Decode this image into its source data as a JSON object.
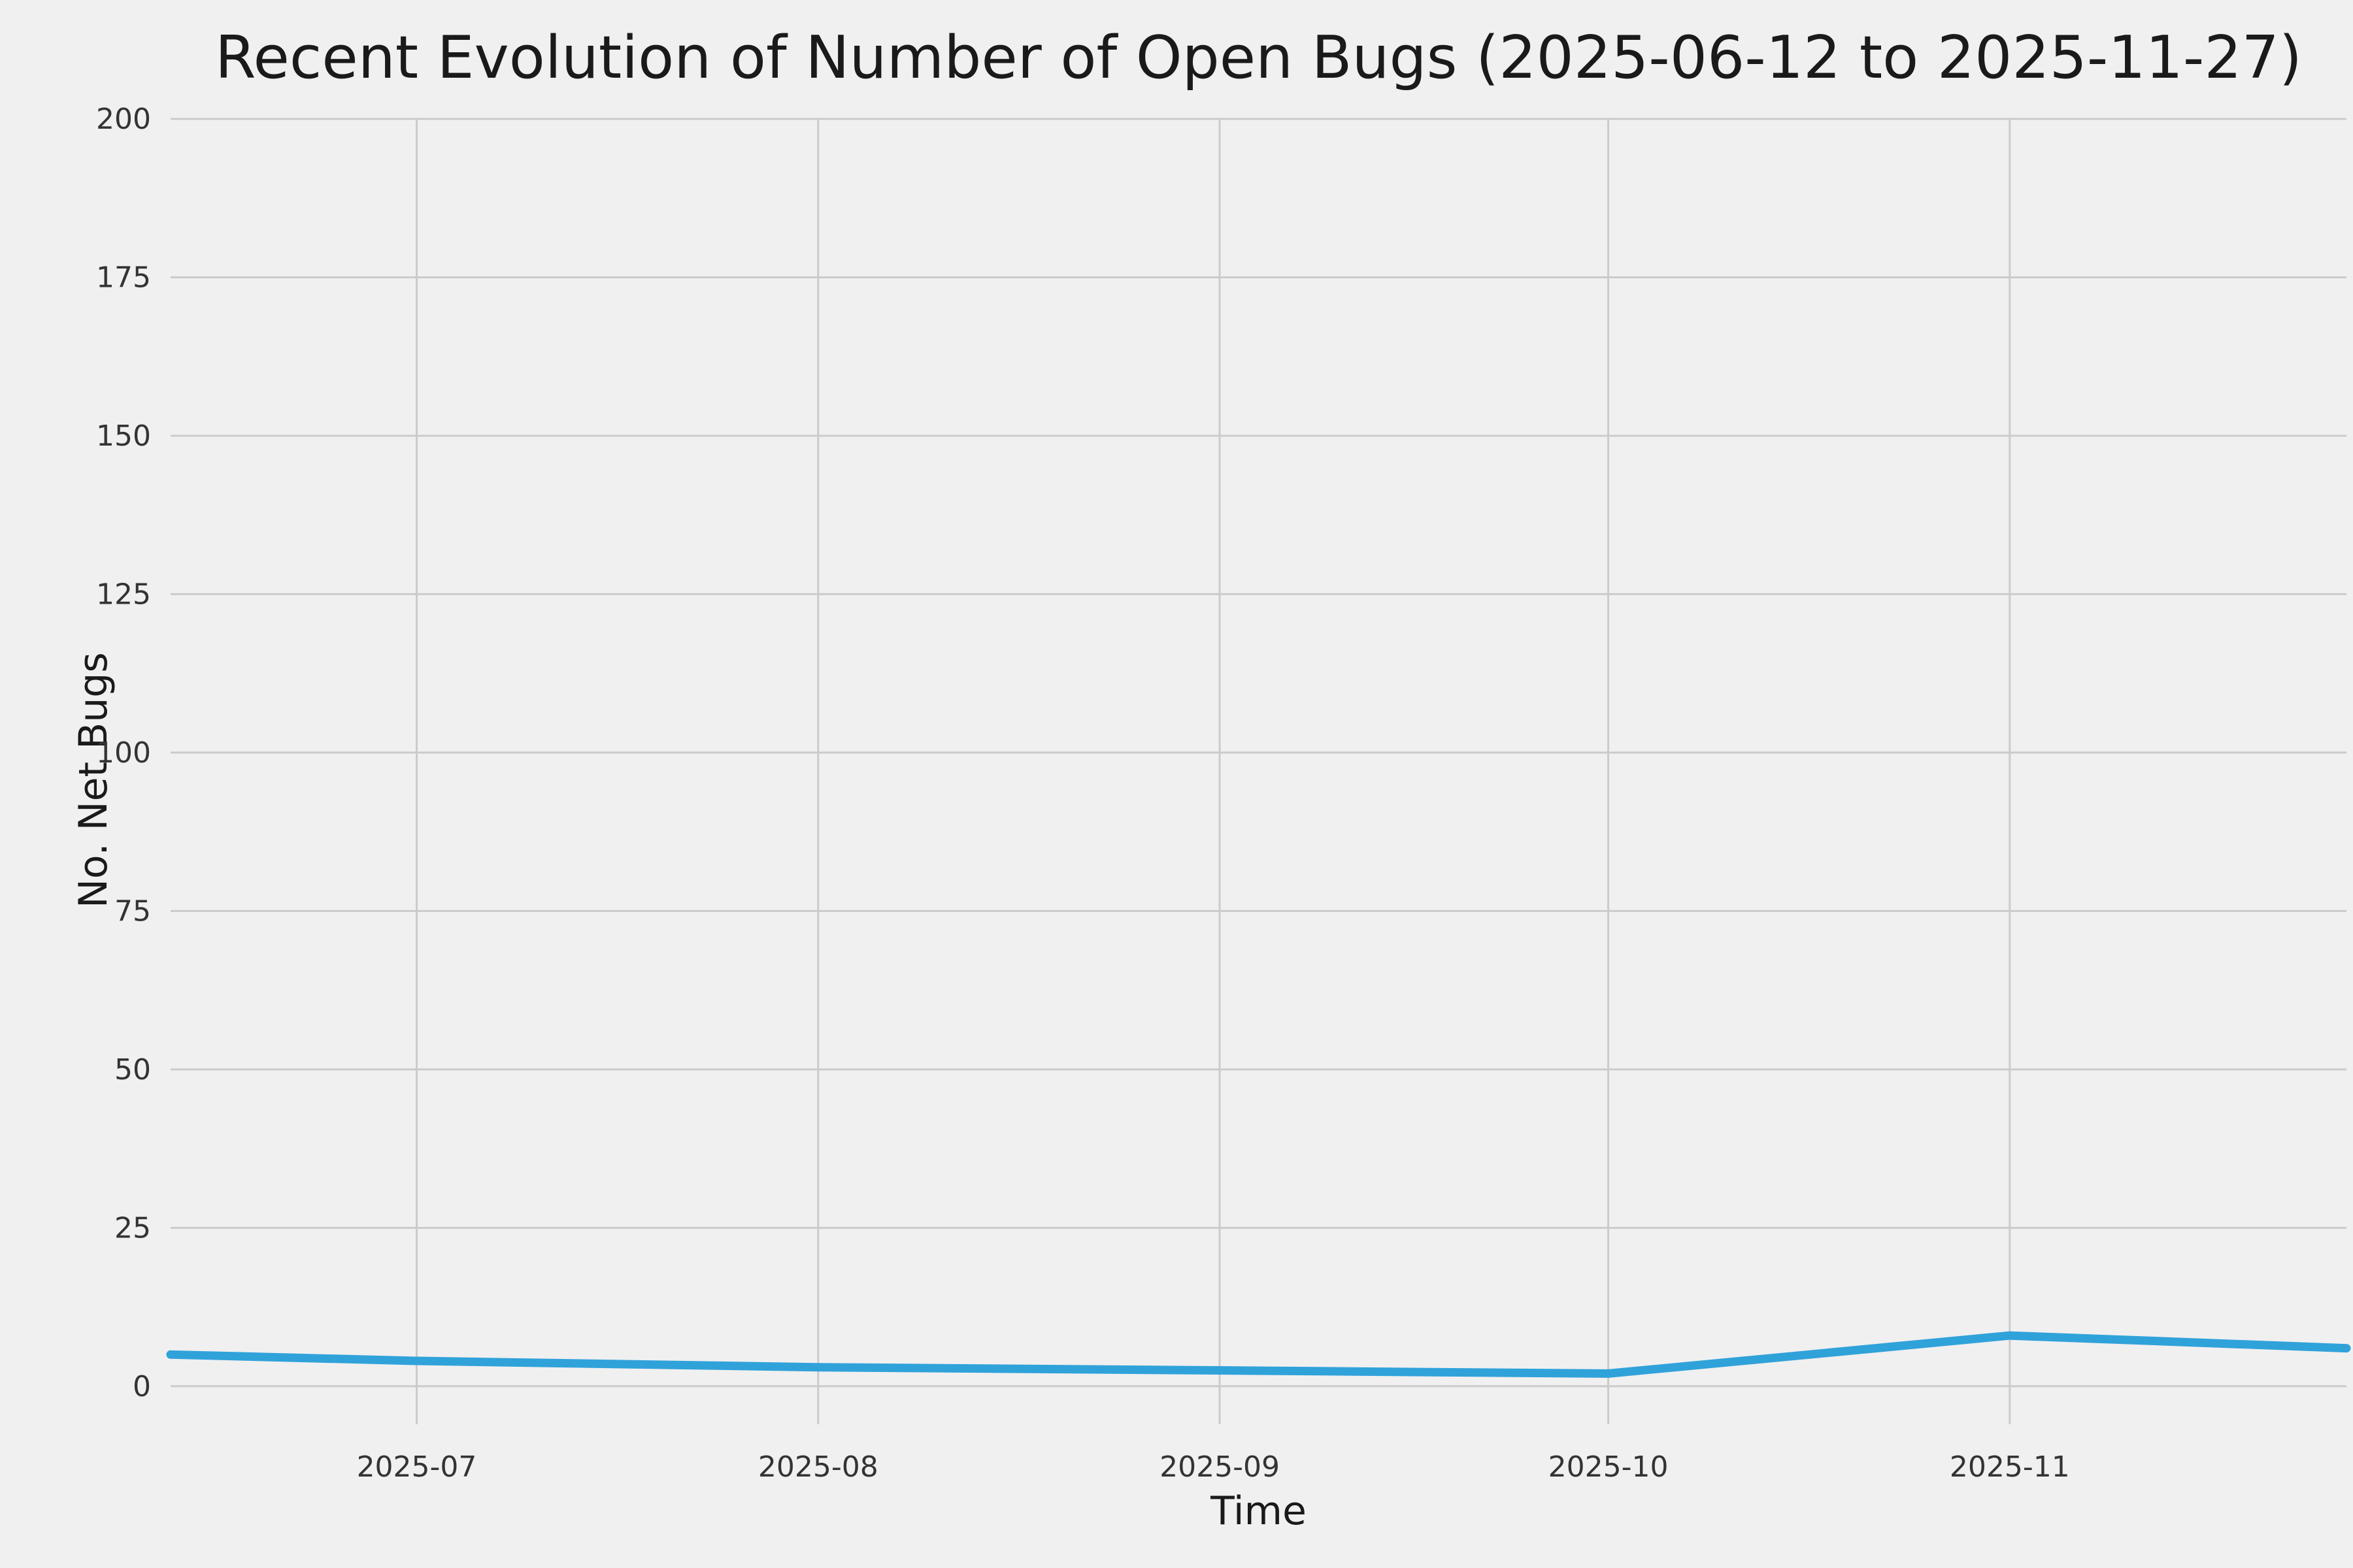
{
  "page": {
    "background": "#f0f0f0"
  },
  "chart_data": {
    "type": "line",
    "title": "Recent Evolution of Number of Open Bugs (2025-06-12 to 2025-11-27)",
    "xlabel": "Time",
    "ylabel": "No. Net Bugs",
    "series": [
      {
        "name": "Open Bugs",
        "x": [
          "2025-06-12",
          "2025-07-01",
          "2025-08-01",
          "2025-09-01",
          "2025-10-01",
          "2025-11-01",
          "2025-11-27"
        ],
        "y": [
          5,
          4,
          3,
          2.5,
          2,
          8,
          6
        ]
      }
    ],
    "xlim": [
      "2025-06-12",
      "2025-11-27"
    ],
    "ylim": [
      -6,
      200
    ],
    "x_ticks": [
      "2025-07",
      "2025-08",
      "2025-09",
      "2025-10",
      "2025-11"
    ],
    "y_ticks": [
      0,
      25,
      50,
      75,
      100,
      125,
      150,
      175,
      200
    ],
    "grid": true,
    "legend": "none",
    "line_color": "#30a2da",
    "grid_color": "#cbcbcb",
    "tick_color": "#333333",
    "background": "#f0f0f0"
  }
}
